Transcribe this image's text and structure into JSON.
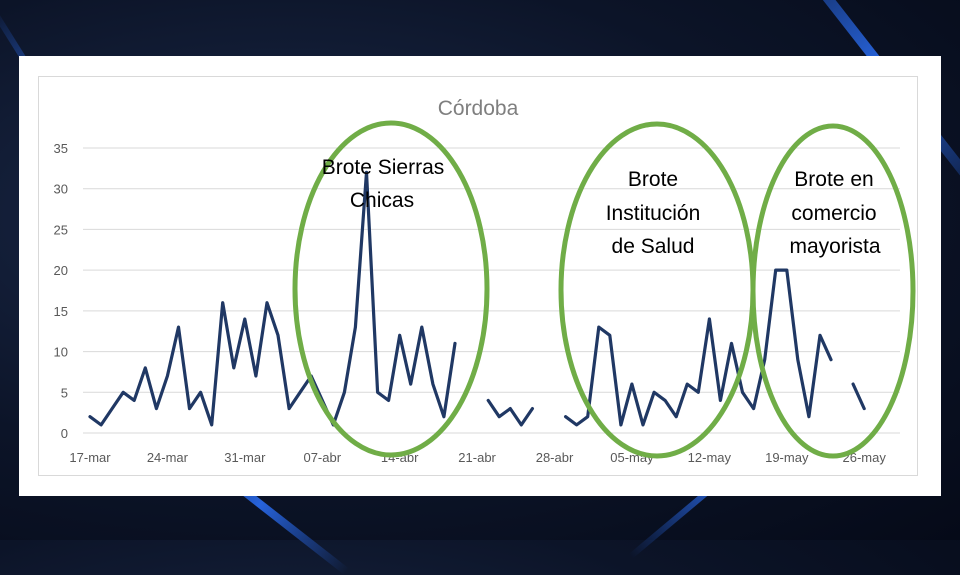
{
  "chart_data": {
    "type": "line",
    "title": "Córdoba",
    "xlabel": "",
    "ylabel": "",
    "ylim": [
      0,
      35
    ],
    "yticks": [
      0,
      5,
      10,
      15,
      20,
      25,
      30,
      35
    ],
    "grid": true,
    "xtick_labels": [
      "17-mar",
      "24-mar",
      "31-mar",
      "07-abr",
      "14-abr",
      "21-abr",
      "28-abr",
      "05-may",
      "12-may",
      "19-may",
      "26-may"
    ],
    "x_start": "17-mar",
    "values": [
      2,
      1,
      3,
      5,
      4,
      8,
      3,
      7,
      13,
      3,
      5,
      1,
      16,
      8,
      14,
      7,
      16,
      12,
      3,
      5,
      7,
      4,
      1,
      5,
      13,
      32,
      5,
      4,
      12,
      6,
      13,
      6,
      2,
      11,
      null,
      null,
      4,
      2,
      3,
      1,
      3,
      null,
      null,
      2,
      1,
      2,
      13,
      12,
      1,
      6,
      1,
      5,
      4,
      2,
      6,
      5,
      14,
      4,
      11,
      5,
      3,
      9,
      20,
      20,
      9,
      2,
      12,
      9,
      null,
      6,
      3
    ],
    "line_color": "#203864",
    "annotations": [
      {
        "lines": [
          "Brote   Sierras",
          "Chicas"
        ],
        "color": "#70ad47"
      },
      {
        "lines": [
          "Brote",
          "Institución",
          "de Salud"
        ],
        "color": "#70ad47"
      },
      {
        "lines": [
          "Brote en",
          "comercio",
          "mayorista"
        ],
        "color": "#70ad47"
      }
    ]
  }
}
